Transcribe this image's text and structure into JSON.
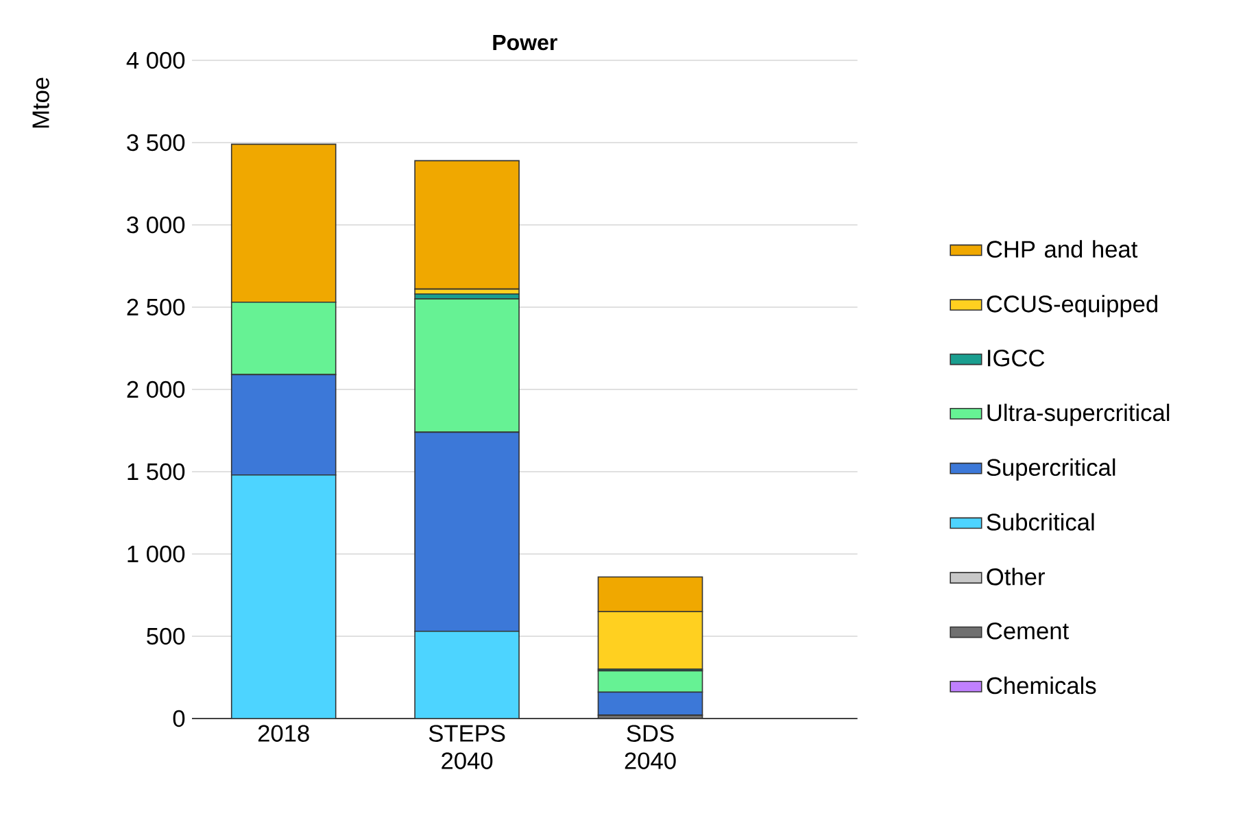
{
  "chart_data": {
    "type": "bar",
    "stacked": true,
    "title": "Power",
    "ylabel": "Mtoe",
    "categories": [
      "2018",
      "STEPS 2040",
      "SDS 2040"
    ],
    "series": [
      {
        "name": "Chemicals",
        "color": "#c080ff",
        "values": [
          0,
          0,
          0
        ]
      },
      {
        "name": "Cement",
        "color": "#707070",
        "values": [
          0,
          0,
          20
        ]
      },
      {
        "name": "Other",
        "color": "#c8c8c8",
        "values": [
          0,
          0,
          0
        ]
      },
      {
        "name": "Subcritical",
        "color": "#4dd4ff",
        "values": [
          1480,
          530,
          0
        ]
      },
      {
        "name": "Supercritical",
        "color": "#3c78d8",
        "values": [
          610,
          1210,
          140
        ]
      },
      {
        "name": "Ultra-supercritical",
        "color": "#66f294",
        "values": [
          440,
          810,
          130
        ]
      },
      {
        "name": "IGCC",
        "color": "#1a9e8f",
        "values": [
          0,
          30,
          10
        ]
      },
      {
        "name": "CCUS-equipped",
        "color": "#ffd020",
        "values": [
          0,
          30,
          350
        ]
      },
      {
        "name": "CHP and heat",
        "color": "#f0a800",
        "values": [
          960,
          780,
          210
        ]
      }
    ],
    "ylim": [
      0,
      4000
    ],
    "yticks": [
      0,
      500,
      {
        "value": 1000,
        "label": "1 000"
      },
      {
        "value": 1500,
        "label": "1 500"
      },
      {
        "value": 2000,
        "label": "2 000"
      },
      {
        "value": 2500,
        "label": "2 500"
      },
      {
        "value": 3000,
        "label": "3 000"
      },
      {
        "value": 3500,
        "label": "3 500"
      },
      {
        "value": 4000,
        "label": "4 000"
      }
    ],
    "grid": "y",
    "legend": "right"
  }
}
